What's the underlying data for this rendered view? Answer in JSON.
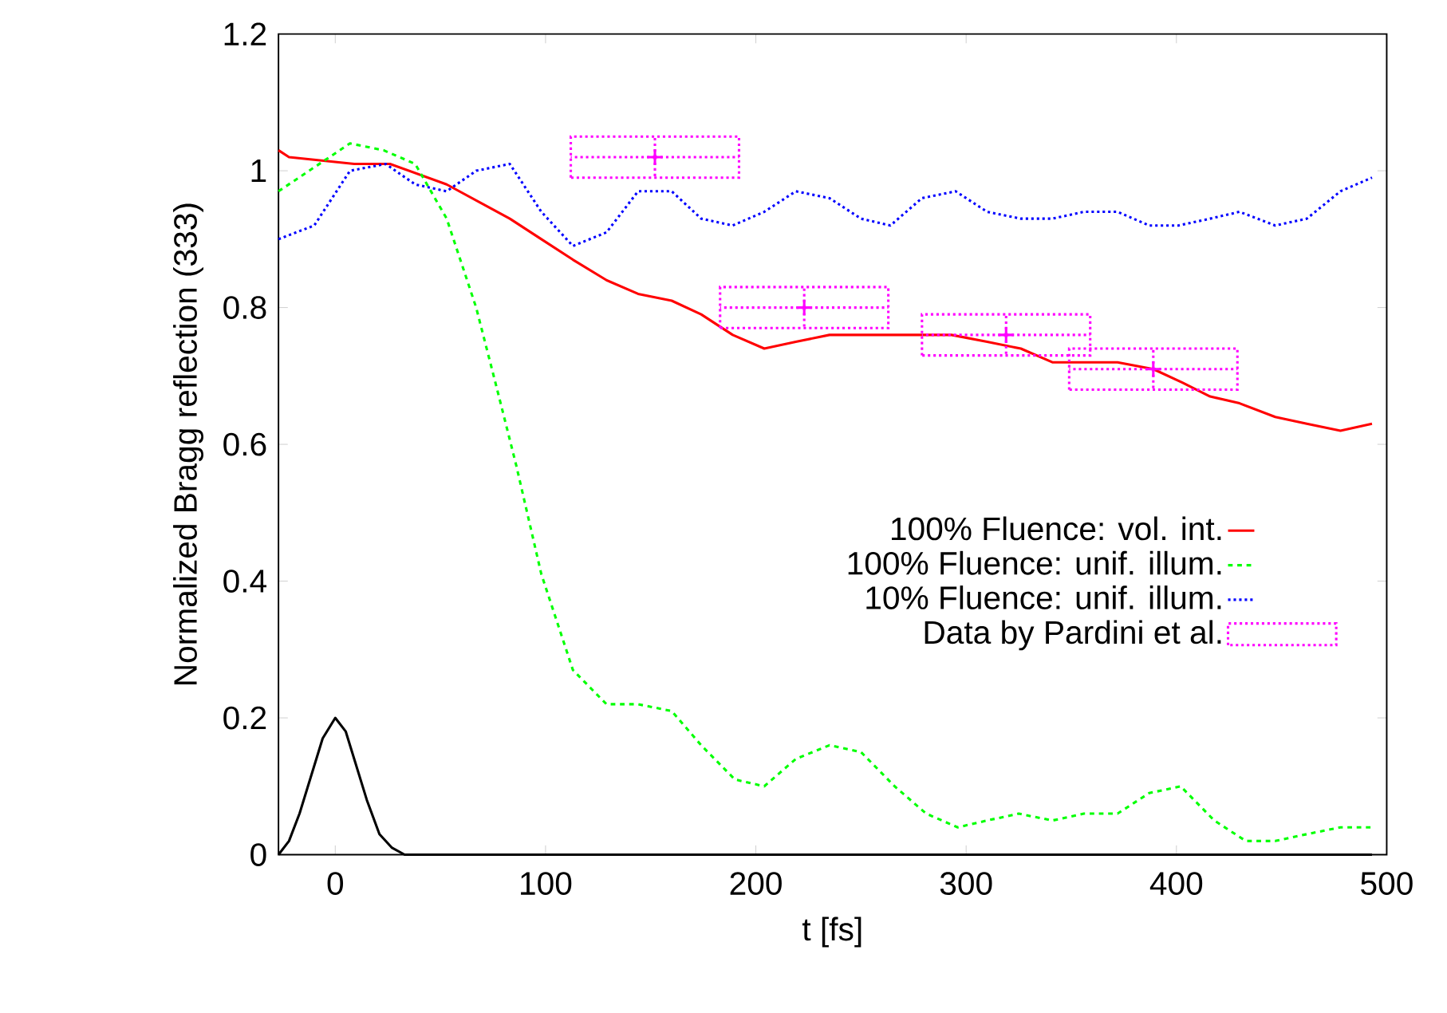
{
  "chart_data": {
    "type": "line",
    "xlabel": "t [fs]",
    "ylabel": "Normalized Bragg reflection (333)",
    "xlim": [
      -27,
      500
    ],
    "ylim": [
      0,
      1.2
    ],
    "xticks": [
      0,
      100,
      200,
      300,
      400,
      500
    ],
    "yticks": [
      0,
      0.2,
      0.4,
      0.6,
      0.8,
      1,
      1.2
    ],
    "legend": "right",
    "marker": "none",
    "series": [
      {
        "name": "100% Fluence: vol. int.",
        "color": "#ff0000",
        "line_style": "solid",
        "x": [
          -27,
          -22,
          9,
          26,
          53,
          83,
          98,
          113,
          129,
          144,
          160,
          174,
          189,
          204,
          219,
          235,
          250,
          278,
          293,
          310,
          326,
          341,
          355,
          372,
          389,
          403,
          416,
          430,
          447,
          462,
          478,
          493
        ],
        "values": [
          1.03,
          1.02,
          1.01,
          1.01,
          0.98,
          0.93,
          0.9,
          0.87,
          0.84,
          0.82,
          0.81,
          0.79,
          0.76,
          0.74,
          0.75,
          0.76,
          0.76,
          0.76,
          0.76,
          0.75,
          0.74,
          0.72,
          0.72,
          0.72,
          0.71,
          0.69,
          0.67,
          0.66,
          0.64,
          0.63,
          0.62,
          0.63
        ]
      },
      {
        "name": "100% Fluence: unif. illum.",
        "color": "#00ff00",
        "line_style": "dashed",
        "x": [
          -27,
          7,
          23,
          38,
          53,
          67,
          77,
          86,
          98,
          113,
          129,
          144,
          160,
          174,
          190,
          204,
          219,
          235,
          250,
          266,
          281,
          296,
          310,
          325,
          341,
          356,
          372,
          387,
          402,
          418,
          433,
          447,
          462,
          478,
          493
        ],
        "values": [
          0.97,
          1.04,
          1.03,
          1.01,
          0.93,
          0.8,
          0.68,
          0.57,
          0.41,
          0.27,
          0.22,
          0.22,
          0.21,
          0.16,
          0.11,
          0.1,
          0.14,
          0.16,
          0.15,
          0.1,
          0.06,
          0.04,
          0.05,
          0.06,
          0.05,
          0.06,
          0.06,
          0.09,
          0.1,
          0.05,
          0.02,
          0.02,
          0.03,
          0.04,
          0.04
        ]
      },
      {
        "name": "10% Fluence: unif. illum.",
        "color": "#0000ff",
        "line_style": "dotted",
        "x": [
          -27,
          -10,
          7,
          24,
          38,
          53,
          67,
          83,
          98,
          113,
          129,
          144,
          160,
          174,
          189,
          204,
          219,
          235,
          250,
          264,
          279,
          295,
          310,
          326,
          341,
          356,
          372,
          387,
          401,
          416,
          430,
          447,
          462,
          478,
          493
        ],
        "values": [
          0.9,
          0.92,
          1.0,
          1.01,
          0.98,
          0.97,
          1.0,
          1.01,
          0.94,
          0.89,
          0.91,
          0.97,
          0.97,
          0.93,
          0.92,
          0.94,
          0.97,
          0.96,
          0.93,
          0.92,
          0.96,
          0.97,
          0.94,
          0.93,
          0.93,
          0.94,
          0.94,
          0.92,
          0.92,
          0.93,
          0.94,
          0.92,
          0.93,
          0.97,
          0.99
        ]
      },
      {
        "name": "Data by Pardini et al.",
        "type": "scatter",
        "marker": "cross",
        "color": "#ff00ff",
        "line_style": "dotted",
        "x": [
          152,
          223,
          319,
          389
        ],
        "values": [
          1.02,
          0.8,
          0.76,
          0.71
        ],
        "errors": [
          0.03,
          0.03,
          0.03,
          0.03
        ],
        "xerrors": [
          40,
          40,
          40,
          40
        ]
      },
      {
        "color": "#000000",
        "line_style": "solid",
        "x": [
          -27,
          -22,
          -17,
          -6,
          0,
          5,
          15,
          21,
          27,
          33,
          40,
          493
        ],
        "values": [
          0,
          0.02,
          0.06,
          0.17,
          0.2,
          0.18,
          0.08,
          0.03,
          0.01,
          0,
          0,
          0
        ]
      }
    ]
  }
}
